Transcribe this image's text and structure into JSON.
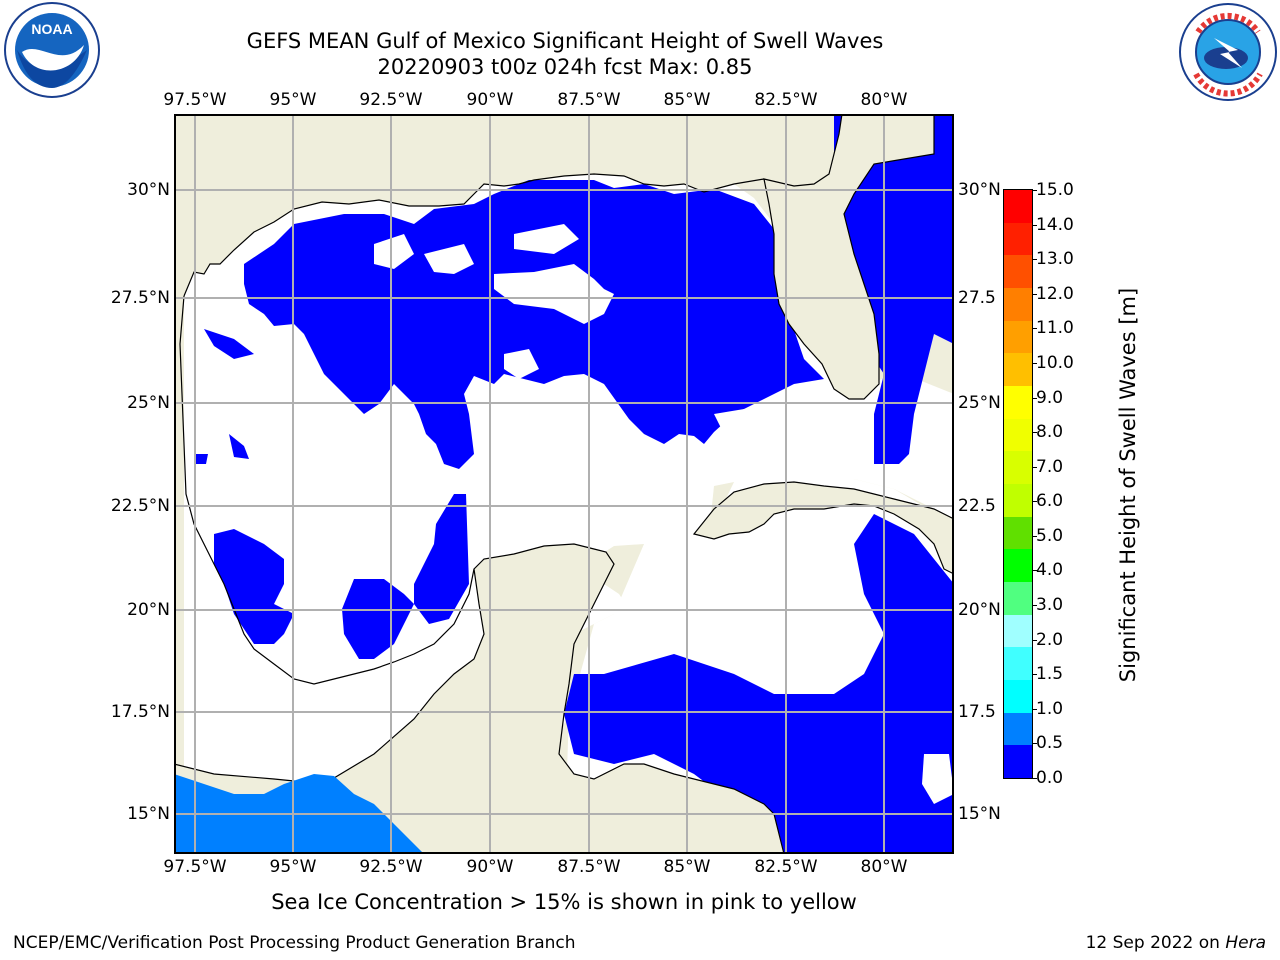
{
  "title_line1": "GEFS MEAN Gulf of Mexico Significant Height of Swell Waves",
  "title_line2": "20220903 t00z 024h fcst   Max: 0.85",
  "map": {
    "lon_ticks": [
      "97.5°W",
      "95°W",
      "92.5°W",
      "90°W",
      "87.5°W",
      "85°W",
      "82.5°W",
      "80°W"
    ],
    "lat_ticks_left": [
      "30°N",
      "27.5°N",
      "25°N",
      "22.5°N",
      "20°N",
      "17.5°N",
      "15°N"
    ],
    "lat_ticks_right": [
      "30°N",
      "27.5",
      "25°N",
      "22.5",
      "20°N",
      "17.5",
      "15°N"
    ],
    "colors": {
      "land": "#efeedc",
      "ocean_low": "#0000ff",
      "ocean_mid": "#0080ff",
      "grid": "#b0b0b0",
      "coast": "#000000"
    }
  },
  "colorbar": {
    "ticks": [
      "15.0",
      "14.0",
      "13.0",
      "12.0",
      "11.0",
      "10.0",
      "9.0",
      "8.0",
      "7.0",
      "6.0",
      "5.0",
      "4.0",
      "3.0",
      "2.0",
      "1.5",
      "1.0",
      "0.5",
      "0.0"
    ],
    "colors_top_to_bottom": [
      "#ff0000",
      "#ff2000",
      "#ff5000",
      "#ff7f00",
      "#ff9f00",
      "#ffbf00",
      "#ffff00",
      "#f0ff00",
      "#d8ff00",
      "#c0ff00",
      "#60e000",
      "#00ff00",
      "#50ff80",
      "#a0ffff",
      "#40ffff",
      "#00ffff",
      "#0080ff",
      "#0000ff"
    ],
    "label": "Significant Height of Swell Waves [m]"
  },
  "note": "Sea Ice Concentration > 15% is shown in pink to yellow",
  "footer_left": "NCEP/EMC/Verification Post Processing Product Generation Branch",
  "footer_right_date": "12 Sep 2022 on ",
  "footer_right_host": "Hera",
  "logos": {
    "left": "NOAA",
    "right": "NATIONAL WEATHER SERVICE"
  }
}
